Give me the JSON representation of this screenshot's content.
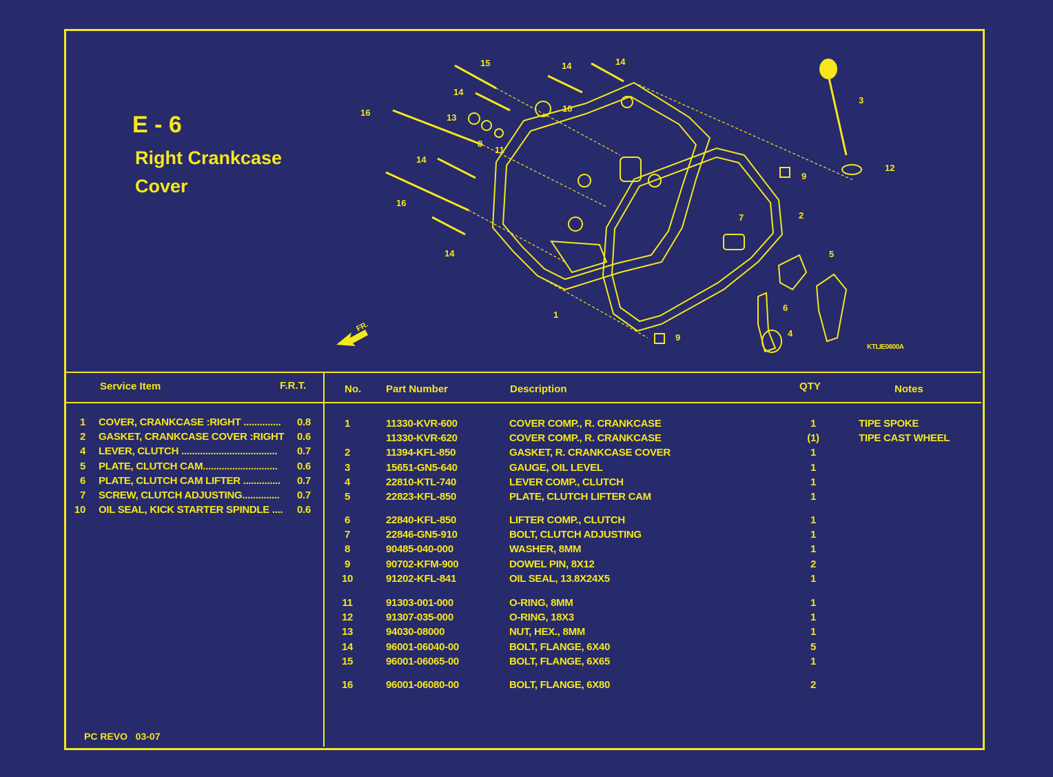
{
  "page": {
    "code": "E - 6",
    "title_line1": "Right Crankcase",
    "title_line2": "Cover",
    "footer": "PC REVO   03-07",
    "colors": {
      "background": "#272a6b",
      "ink": "#f4e81c"
    }
  },
  "diagram": {
    "illustration_code": "KTLIE0600A",
    "front_marker": "FR.",
    "callouts": [
      "15",
      "14",
      "14",
      "14",
      "10",
      "16",
      "13",
      "8",
      "11",
      "3",
      "14",
      "12",
      "9",
      "16",
      "2",
      "7",
      "14",
      "5",
      "6",
      "1",
      "4",
      "9"
    ]
  },
  "service": {
    "header_item": "Service Item",
    "header_frt": "F.R.T.",
    "items": [
      {
        "no": "1",
        "name": "COVER, CRANKCASE :RIGHT ..............",
        "frt": "0.8"
      },
      {
        "no": "2",
        "name": "GASKET, CRANKCASE COVER :RIGHT",
        "frt": "0.6"
      },
      {
        "no": "4",
        "name": "LEVER, CLUTCH ....................................",
        "frt": "0.7"
      },
      {
        "no": "5",
        "name": "PLATE, CLUTCH CAM............................",
        "frt": "0.6"
      },
      {
        "no": "6",
        "name": "PLATE, CLUTCH CAM LIFTER ..............",
        "frt": "0.7"
      },
      {
        "no": "7",
        "name": "SCREW, CLUTCH ADJUSTING..............",
        "frt": "0.7"
      },
      {
        "no": "10",
        "name": "OIL SEAL, KICK STARTER SPINDLE ....",
        "frt": "0.6"
      }
    ]
  },
  "parts": {
    "headers": {
      "no": "No.",
      "part_number": "Part Number",
      "description": "Description",
      "qty": "QTY",
      "notes": "Notes"
    },
    "groups": [
      [
        {
          "no": "1",
          "part_number": "11330-KVR-600",
          "description": "COVER COMP., R. CRANKCASE",
          "qty": "1",
          "notes": "TIPE SPOKE"
        },
        {
          "no": "",
          "part_number": "11330-KVR-620",
          "description": "COVER COMP., R. CRANKCASE",
          "qty": "(1)",
          "notes": "TIPE CAST WHEEL"
        },
        {
          "no": "2",
          "part_number": "11394-KFL-850",
          "description": "GASKET, R. CRANKCASE COVER",
          "qty": "1",
          "notes": ""
        },
        {
          "no": "3",
          "part_number": "15651-GN5-640",
          "description": "GAUGE, OIL LEVEL",
          "qty": "1",
          "notes": ""
        },
        {
          "no": "4",
          "part_number": "22810-KTL-740",
          "description": "LEVER COMP., CLUTCH",
          "qty": "1",
          "notes": ""
        },
        {
          "no": "5",
          "part_number": "22823-KFL-850",
          "description": "PLATE, CLUTCH LIFTER CAM",
          "qty": "1",
          "notes": ""
        }
      ],
      [
        {
          "no": "6",
          "part_number": "22840-KFL-850",
          "description": "LIFTER COMP., CLUTCH",
          "qty": "1",
          "notes": ""
        },
        {
          "no": "7",
          "part_number": "22846-GN5-910",
          "description": "BOLT, CLUTCH ADJUSTING",
          "qty": "1",
          "notes": ""
        },
        {
          "no": "8",
          "part_number": "90485-040-000",
          "description": "WASHER, 8MM",
          "qty": "1",
          "notes": ""
        },
        {
          "no": "9",
          "part_number": "90702-KFM-900",
          "description": "DOWEL PIN, 8X12",
          "qty": "2",
          "notes": ""
        },
        {
          "no": "10",
          "part_number": "91202-KFL-841",
          "description": "OIL SEAL, 13.8X24X5",
          "qty": "1",
          "notes": ""
        }
      ],
      [
        {
          "no": "11",
          "part_number": "91303-001-000",
          "description": "O-RING, 8MM",
          "qty": "1",
          "notes": ""
        },
        {
          "no": "12",
          "part_number": "91307-035-000",
          "description": "O-RING, 18X3",
          "qty": "1",
          "notes": ""
        },
        {
          "no": "13",
          "part_number": "94030-08000",
          "description": "NUT, HEX., 8MM",
          "qty": "1",
          "notes": ""
        },
        {
          "no": "14",
          "part_number": "96001-06040-00",
          "description": "BOLT, FLANGE, 6X40",
          "qty": "5",
          "notes": ""
        },
        {
          "no": "15",
          "part_number": "96001-06065-00",
          "description": "BOLT, FLANGE, 6X65",
          "qty": "1",
          "notes": ""
        }
      ],
      [
        {
          "no": "16",
          "part_number": "96001-06080-00",
          "description": "BOLT, FLANGE, 6X80",
          "qty": "2",
          "notes": ""
        }
      ]
    ]
  }
}
